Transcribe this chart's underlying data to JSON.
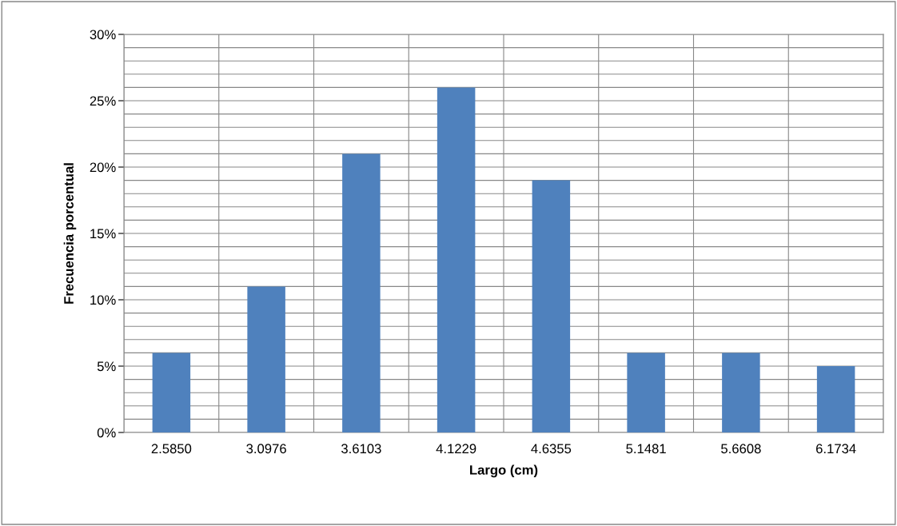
{
  "chart_data": {
    "type": "bar",
    "xlabel": "Largo (cm)",
    "ylabel": "Frecuencia porcentual",
    "categories": [
      "2.5850",
      "3.0976",
      "3.6103",
      "4.1229",
      "4.6355",
      "5.1481",
      "5.6608",
      "6.1734"
    ],
    "values": [
      6,
      11,
      21,
      26,
      19,
      6,
      6,
      5
    ],
    "color": "#4f81bd",
    "ylim": [
      0,
      30
    ],
    "yticks": [
      {
        "value": 0,
        "label": "0%"
      },
      {
        "value": 1,
        "label": null
      },
      {
        "value": 2,
        "label": null
      },
      {
        "value": 3,
        "label": null
      },
      {
        "value": 4,
        "label": null
      },
      {
        "value": 5,
        "label": "5%"
      },
      {
        "value": 6,
        "label": null
      },
      {
        "value": 7,
        "label": null
      },
      {
        "value": 8,
        "label": null
      },
      {
        "value": 9,
        "label": null
      },
      {
        "value": 10,
        "label": "10%"
      },
      {
        "value": 11,
        "label": null
      },
      {
        "value": 12,
        "label": null
      },
      {
        "value": 13,
        "label": null
      },
      {
        "value": 14,
        "label": null
      },
      {
        "value": 15,
        "label": "15%"
      },
      {
        "value": 16,
        "label": null
      },
      {
        "value": 17,
        "label": null
      },
      {
        "value": 18,
        "label": null
      },
      {
        "value": 19,
        "label": null
      },
      {
        "value": 20,
        "label": "20%"
      },
      {
        "value": 21,
        "label": null
      },
      {
        "value": 22,
        "label": null
      },
      {
        "value": 23,
        "label": null
      },
      {
        "value": 24,
        "label": null
      },
      {
        "value": 25,
        "label": "25%"
      },
      {
        "value": 26,
        "label": null
      },
      {
        "value": 27,
        "label": null
      },
      {
        "value": 28,
        "label": null
      },
      {
        "value": 29,
        "label": null
      },
      {
        "value": 30,
        "label": "30%"
      }
    ],
    "grid": true
  }
}
